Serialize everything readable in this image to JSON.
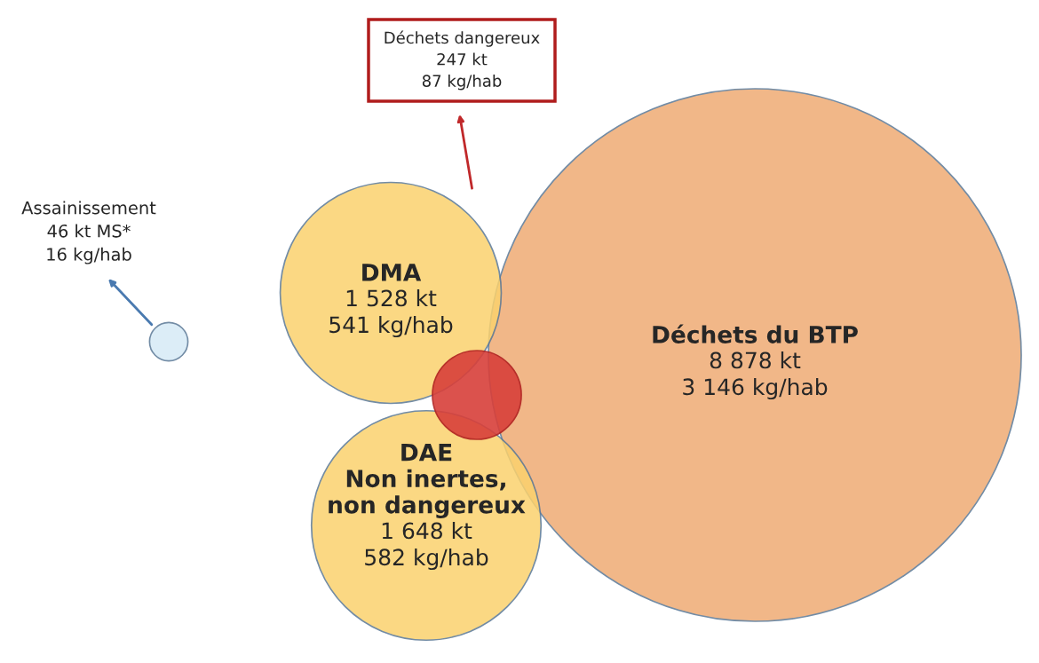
{
  "chart_data": {
    "type": "other",
    "categories": [
      "DMA",
      "DAE Non inertes, non dangereux",
      "Déchets du BTP",
      "Déchets dangereux",
      "Assainissement"
    ],
    "series": [
      {
        "values": [
          1528,
          1648,
          8878,
          247,
          46
        ],
        "colors": [
          "#fbd26e",
          "#fbd26e",
          "#efab74",
          "#d8403a",
          "#d7eaf6"
        ],
        "value_labels": [
          "1 528 kt",
          "1 648 kt",
          "8 878 kt",
          "247 kt",
          "46 kt MS*"
        ]
      },
      {
        "values": [
          541,
          582,
          3146,
          87,
          16
        ],
        "value_labels": [
          "541 kg/hab",
          "582 kg/hab",
          "3 146 kg/hab",
          "87 kg/hab",
          "16 kg/hab"
        ]
      }
    ]
  }
}
